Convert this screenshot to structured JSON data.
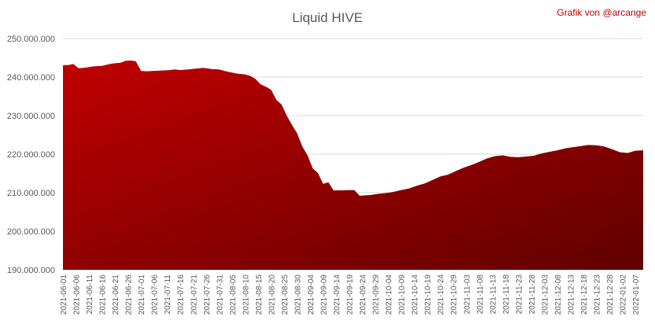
{
  "chart_data": {
    "type": "area",
    "title": "Liquid HIVE",
    "credit": "Grafik von @arcange",
    "xlabel": "",
    "ylabel": "",
    "ylim": [
      190000000,
      250000000
    ],
    "grid": true,
    "legend": "none",
    "colors": {
      "fill_top": "#c00000",
      "fill_bottom": "#600000",
      "grid": "#d9d9d9",
      "text": "#595959",
      "credit": "#c00000"
    },
    "y_ticks": [
      "190.000.000",
      "200.000.000",
      "210.000.000",
      "220.000.000",
      "230.000.000",
      "240.000.000",
      "250.000.000"
    ],
    "x_ticks": [
      "2021-06-01",
      "2021-06-06",
      "2021-06-11",
      "2021-06-16",
      "2021-06-21",
      "2021-06-26",
      "2021-07-01",
      "2021-07-06",
      "2021-07-11",
      "2021-07-16",
      "2021-07-21",
      "2021-07-26",
      "2021-07-31",
      "2021-08-05",
      "2021-08-10",
      "2021-08-15",
      "2021-08-20",
      "2021-08-25",
      "2021-08-30",
      "2021-09-04",
      "2021-09-09",
      "2021-09-14",
      "2021-09-19",
      "2021-09-24",
      "2021-09-29",
      "2021-10-04",
      "2021-10-09",
      "2021-10-14",
      "2021-10-19",
      "2021-10-24",
      "2021-10-29",
      "2021-11-03",
      "2021-11-08",
      "2021-11-13",
      "2021-11-18",
      "2021-11-23",
      "2021-11-28",
      "2021-12-03",
      "2021-12-08",
      "2021-12-13",
      "2021-12-18",
      "2021-12-23",
      "2021-12-28",
      "2022-01-02",
      "2022-01-07"
    ],
    "series": [
      {
        "x": [
          "2021-06-01",
          "2021-06-03",
          "2021-06-05",
          "2021-06-07",
          "2021-06-09",
          "2021-06-11",
          "2021-06-13",
          "2021-06-16",
          "2021-06-19",
          "2021-06-21",
          "2021-06-23",
          "2021-06-25",
          "2021-06-27",
          "2021-06-29",
          "2021-07-01",
          "2021-07-03",
          "2021-07-06",
          "2021-07-09",
          "2021-07-12",
          "2021-07-14",
          "2021-07-16",
          "2021-07-19",
          "2021-07-22",
          "2021-07-25",
          "2021-07-28",
          "2021-07-31",
          "2021-08-02",
          "2021-08-04",
          "2021-08-07",
          "2021-08-10",
          "2021-08-12",
          "2021-08-14",
          "2021-08-16",
          "2021-08-18",
          "2021-08-20",
          "2021-08-22",
          "2021-08-24",
          "2021-08-26",
          "2021-08-28",
          "2021-08-30",
          "2021-09-01",
          "2021-09-03",
          "2021-09-05",
          "2021-09-07",
          "2021-09-09",
          "2021-09-11",
          "2021-09-13",
          "2021-09-16",
          "2021-09-19",
          "2021-09-21",
          "2021-09-23",
          "2021-09-25",
          "2021-09-27",
          "2021-09-30",
          "2021-10-03",
          "2021-10-06",
          "2021-10-09",
          "2021-10-12",
          "2021-10-15",
          "2021-10-18",
          "2021-10-21",
          "2021-10-24",
          "2021-10-27",
          "2021-10-30",
          "2021-11-02",
          "2021-11-05",
          "2021-11-08",
          "2021-11-11",
          "2021-11-14",
          "2021-11-17",
          "2021-11-20",
          "2021-11-23",
          "2021-11-26",
          "2021-11-29",
          "2021-12-02",
          "2021-12-05",
          "2021-12-08",
          "2021-12-11",
          "2021-12-14",
          "2021-12-17",
          "2021-12-20",
          "2021-12-23",
          "2021-12-26",
          "2021-12-29",
          "2022-01-01",
          "2022-01-04",
          "2022-01-07",
          "2022-01-10"
        ],
        "values": [
          243100000,
          243100000,
          243400000,
          242300000,
          242400000,
          242600000,
          242800000,
          242900000,
          243400000,
          243600000,
          243700000,
          244200000,
          244300000,
          244100000,
          241600000,
          241500000,
          241600000,
          241700000,
          241800000,
          242000000,
          241800000,
          242000000,
          242200000,
          242400000,
          242100000,
          242000000,
          241600000,
          241300000,
          240900000,
          240700000,
          240300000,
          239500000,
          238100000,
          237500000,
          236700000,
          234100000,
          232900000,
          230000000,
          227600000,
          225400000,
          222000000,
          219700000,
          216300000,
          215100000,
          212300000,
          212700000,
          210600000,
          210600000,
          210700000,
          210700000,
          209200000,
          209300000,
          209400000,
          209700000,
          209900000,
          210200000,
          210700000,
          211100000,
          211800000,
          212400000,
          213300000,
          214200000,
          214700000,
          215600000,
          216500000,
          217200000,
          218000000,
          218900000,
          219500000,
          219700000,
          219300000,
          219200000,
          219400000,
          219600000,
          220200000,
          220600000,
          221000000,
          221500000,
          221800000,
          222100000,
          222400000,
          222300000,
          222000000,
          221300000,
          220500000,
          220300000,
          220900000,
          221000000
        ]
      }
    ]
  }
}
